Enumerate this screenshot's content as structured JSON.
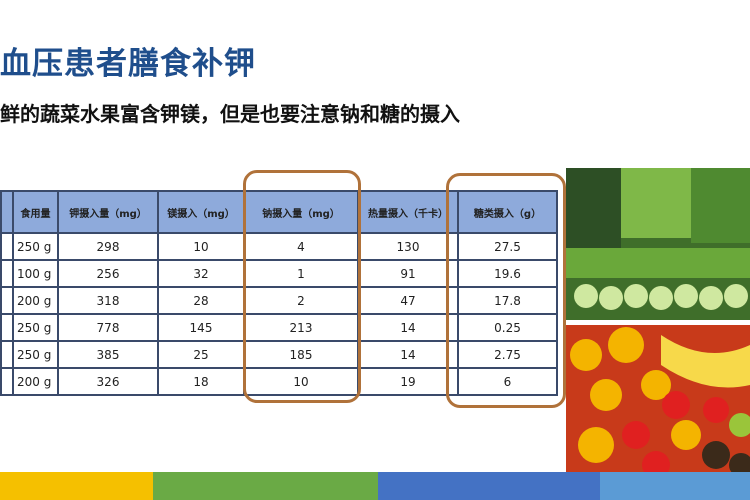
{
  "title": "血压患者膳食补钾",
  "subtitle": "鲜的蔬菜水果富含钾镁，但是也要注意钠和糖的摄入",
  "table": {
    "headers": [
      "",
      "食用量",
      "钾摄入量（mg）",
      "镁摄入（mg）",
      "钠摄入量（mg）",
      "热量摄入（千卡）",
      "糖类摄入（g）"
    ],
    "rows": [
      [
        "",
        "250 g",
        "298",
        "10",
        "4",
        "130",
        "27.5"
      ],
      [
        "",
        "100 g",
        "256",
        "32",
        "1",
        "91",
        "19.6"
      ],
      [
        "",
        "200 g",
        "318",
        "28",
        "2",
        "47",
        "17.8"
      ],
      [
        "",
        "250 g",
        "778",
        "145",
        "213",
        "14",
        "0.25"
      ],
      [
        "",
        "250 g",
        "385",
        "25",
        "185",
        "14",
        "2.75"
      ],
      [
        "",
        "200 g",
        "326",
        "18",
        "10",
        "19",
        "6"
      ]
    ]
  },
  "colors": {
    "title": "#1f4e8c",
    "header": "#8eaadb",
    "highlight": "#b0723a",
    "bars": [
      "#f5c000",
      "#6aaa45",
      "#4472c4",
      "#5b9bd5"
    ]
  }
}
